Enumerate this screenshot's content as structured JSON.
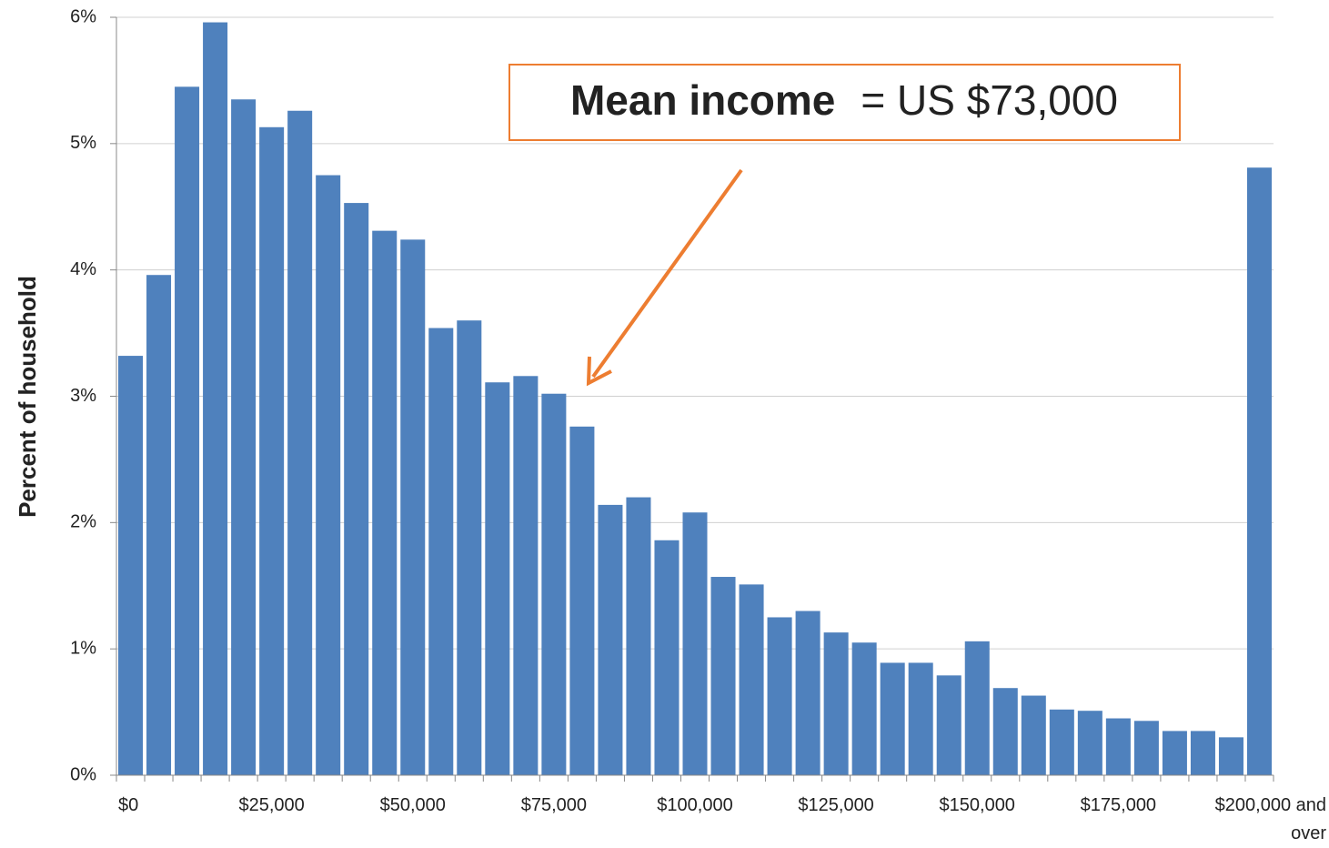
{
  "chart_data": {
    "type": "bar",
    "y_axis_label": "Percent of household",
    "annotation": {
      "bold": "Mean income",
      "text": "= US $73,000",
      "color": "#ed7d31"
    },
    "categories": [
      "$0",
      null,
      null,
      null,
      null,
      "$25,000",
      null,
      null,
      null,
      null,
      "$50,000",
      null,
      null,
      null,
      null,
      "$75,000",
      null,
      null,
      null,
      null,
      "$100,000",
      null,
      null,
      null,
      null,
      "$125,000",
      null,
      null,
      null,
      null,
      "$150,000",
      null,
      null,
      null,
      null,
      "$175,000",
      null,
      null,
      null,
      null,
      "$200,000 and over"
    ],
    "values": [
      3.32,
      3.96,
      5.45,
      5.96,
      5.35,
      5.13,
      5.26,
      4.75,
      4.53,
      4.31,
      4.24,
      3.54,
      3.6,
      3.11,
      3.16,
      3.02,
      2.76,
      2.14,
      2.2,
      1.86,
      2.08,
      1.57,
      1.51,
      1.25,
      1.3,
      1.13,
      1.05,
      0.89,
      0.89,
      0.79,
      1.06,
      0.69,
      0.63,
      0.52,
      0.51,
      0.45,
      0.43,
      0.35,
      0.35,
      0.3,
      4.81
    ],
    "color": "#4f81bd",
    "ylim": [
      0,
      6
    ],
    "yticks": [
      {
        "value": 0,
        "label": "0%"
      },
      {
        "value": 1,
        "label": "1%"
      },
      {
        "value": 2,
        "label": "2%"
      },
      {
        "value": 3,
        "label": "3%"
      },
      {
        "value": 4,
        "label": "4%"
      },
      {
        "value": 5,
        "label": "5%"
      },
      {
        "value": 6,
        "label": "6%"
      }
    ],
    "grid": true
  }
}
